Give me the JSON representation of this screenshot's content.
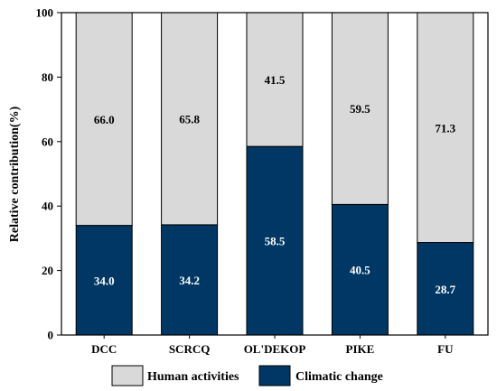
{
  "chart_data": {
    "type": "bar",
    "stacked": true,
    "normalized": true,
    "categories": [
      "DCC",
      "SCRCQ",
      "OL'DEKOP",
      "PIKE",
      "FU"
    ],
    "series": [
      {
        "name": "Climatic change",
        "values": [
          34.0,
          34.2,
          58.5,
          40.5,
          28.7
        ],
        "color": "#003764"
      },
      {
        "name": "Human activities",
        "values": [
          66.0,
          65.8,
          41.5,
          59.5,
          71.3
        ],
        "color": "#d9d9d9"
      }
    ],
    "data_labels": {
      "Climatic change": [
        "34.0",
        "34.2",
        "58.5",
        "40.5",
        "28.7"
      ],
      "Human activities": [
        "66.0",
        "65.8",
        "41.5",
        "59.5",
        "71.3"
      ]
    },
    "title": "",
    "xlabel": "",
    "ylabel": "Relative contribution(%)",
    "ylim": [
      0,
      100
    ],
    "yticks": [
      "0",
      "20",
      "40",
      "60",
      "80",
      "100"
    ],
    "grid": false,
    "legend": {
      "position": "bottom",
      "entries": [
        "Human activities",
        "Climatic change"
      ]
    }
  }
}
